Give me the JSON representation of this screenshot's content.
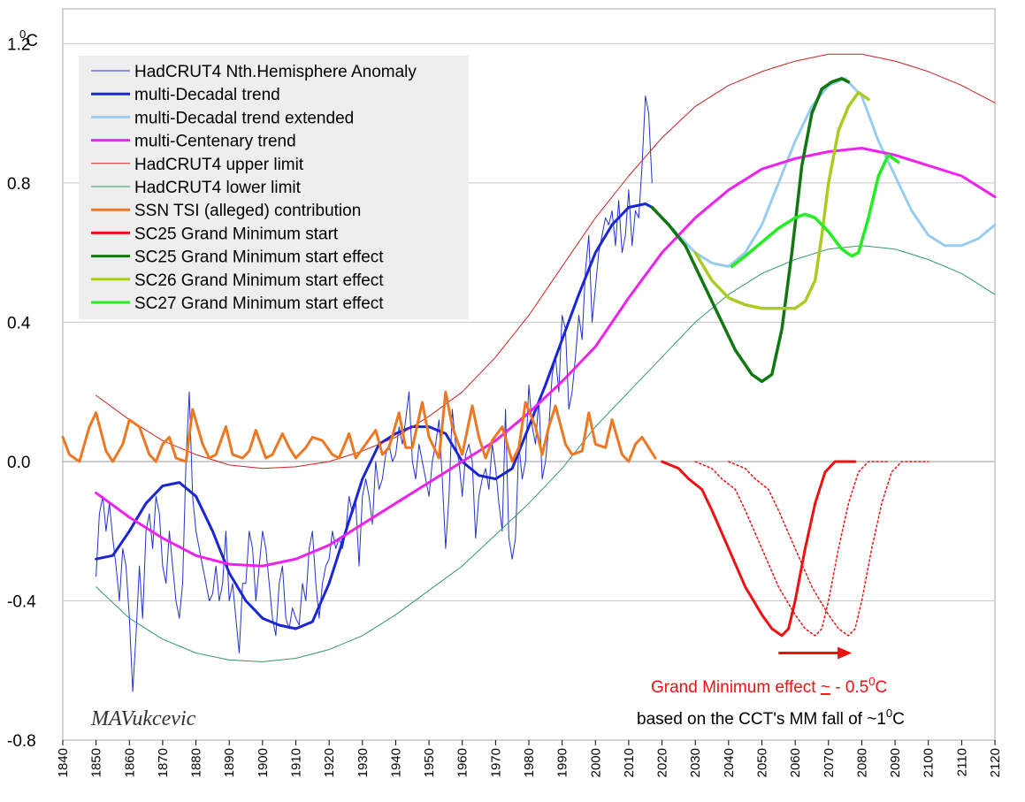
{
  "chart_data": {
    "type": "line",
    "xlim": [
      1840,
      2120
    ],
    "ylim": [
      -0.8,
      1.3
    ],
    "grid": true,
    "legend_position": "top-left",
    "y_unit": {
      "sup": "0",
      "unit": "C"
    },
    "y_ticks": [
      {
        "value": 1.2,
        "label": "1.2"
      },
      {
        "value": 0.8,
        "label": "0.8"
      },
      {
        "value": 0.4,
        "label": "0.4"
      },
      {
        "value": 0.0,
        "label": "0.0"
      },
      {
        "value": -0.4,
        "label": "-0.4"
      },
      {
        "value": -0.8,
        "label": "-0.8"
      }
    ],
    "x_ticks": [
      "1840",
      "1850",
      "1860",
      "1870",
      "1880",
      "1890",
      "1900",
      "1910",
      "1920",
      "1930",
      "1940",
      "1950",
      "1960",
      "1970",
      "1980",
      "1990",
      "2000",
      "2010",
      "2020",
      "2030",
      "2040",
      "2050",
      "2060",
      "2070",
      "2080",
      "2090",
      "2100",
      "2110",
      "2120"
    ],
    "series": [
      {
        "key": "anomaly",
        "name": "HadCRUT4 Nth.Hemisphere Anomaly",
        "color": "#2233cc",
        "width": 1,
        "x": [
          1850,
          1851,
          1852,
          1853,
          1854,
          1855,
          1856,
          1857,
          1858,
          1859,
          1860,
          1861,
          1862,
          1863,
          1864,
          1865,
          1866,
          1867,
          1868,
          1869,
          1870,
          1871,
          1872,
          1873,
          1874,
          1875,
          1876,
          1877,
          1878,
          1879,
          1880,
          1881,
          1882,
          1883,
          1884,
          1885,
          1886,
          1887,
          1888,
          1889,
          1890,
          1891,
          1892,
          1893,
          1894,
          1895,
          1896,
          1897,
          1898,
          1899,
          1900,
          1901,
          1902,
          1903,
          1904,
          1905,
          1906,
          1907,
          1908,
          1909,
          1910,
          1911,
          1912,
          1913,
          1914,
          1915,
          1916,
          1917,
          1918,
          1919,
          1920,
          1921,
          1922,
          1923,
          1924,
          1925,
          1926,
          1927,
          1928,
          1929,
          1930,
          1931,
          1932,
          1933,
          1934,
          1935,
          1936,
          1937,
          1938,
          1939,
          1940,
          1941,
          1942,
          1943,
          1944,
          1945,
          1946,
          1947,
          1948,
          1949,
          1950,
          1951,
          1952,
          1953,
          1954,
          1955,
          1956,
          1957,
          1958,
          1959,
          1960,
          1961,
          1962,
          1963,
          1964,
          1965,
          1966,
          1967,
          1968,
          1969,
          1970,
          1971,
          1972,
          1973,
          1974,
          1975,
          1976,
          1977,
          1978,
          1979,
          1980,
          1981,
          1982,
          1983,
          1984,
          1985,
          1986,
          1987,
          1988,
          1989,
          1990,
          1991,
          1992,
          1993,
          1994,
          1995,
          1996,
          1997,
          1998,
          1999,
          2000,
          2001,
          2002,
          2003,
          2004,
          2005,
          2006,
          2007,
          2008,
          2009,
          2010,
          2011,
          2012,
          2013,
          2014,
          2015,
          2016,
          2017
        ],
        "y": [
          -0.33,
          -0.15,
          -0.1,
          -0.2,
          -0.12,
          -0.22,
          -0.3,
          -0.4,
          -0.25,
          -0.3,
          -0.45,
          -0.66,
          -0.5,
          -0.3,
          -0.45,
          -0.2,
          -0.15,
          -0.25,
          -0.1,
          -0.15,
          -0.3,
          -0.35,
          -0.2,
          -0.3,
          -0.4,
          -0.45,
          -0.35,
          0.0,
          0.2,
          -0.1,
          -0.2,
          -0.25,
          -0.3,
          -0.35,
          -0.4,
          -0.38,
          -0.3,
          -0.4,
          -0.35,
          -0.2,
          -0.4,
          -0.35,
          -0.45,
          -0.55,
          -0.35,
          -0.35,
          -0.2,
          -0.25,
          -0.4,
          -0.3,
          -0.2,
          -0.25,
          -0.35,
          -0.45,
          -0.5,
          -0.35,
          -0.3,
          -0.45,
          -0.48,
          -0.42,
          -0.45,
          -0.47,
          -0.35,
          -0.4,
          -0.25,
          -0.2,
          -0.35,
          -0.45,
          -0.35,
          -0.3,
          -0.28,
          -0.2,
          -0.25,
          -0.22,
          -0.25,
          -0.2,
          -0.1,
          -0.15,
          -0.12,
          -0.3,
          -0.1,
          -0.05,
          -0.1,
          -0.18,
          0.0,
          -0.08,
          -0.05,
          0.02,
          0.05,
          0.0,
          0.02,
          0.1,
          0.05,
          0.12,
          0.2,
          0.0,
          -0.05,
          0.05,
          0.0,
          -0.05,
          -0.1,
          0.0,
          0.05,
          0.12,
          -0.05,
          -0.25,
          -0.1,
          0.15,
          0.05,
          0.0,
          -0.1,
          0.02,
          0.05,
          0.0,
          -0.22,
          -0.1,
          -0.05,
          -0.02,
          -0.08,
          0.05,
          -0.02,
          -0.12,
          -0.2,
          0.15,
          -0.22,
          -0.28,
          -0.22,
          0.05,
          -0.05,
          0.0,
          0.22,
          0.1,
          0.05,
          0.18,
          -0.05,
          0.0,
          0.1,
          0.25,
          0.3,
          0.2,
          0.42,
          0.38,
          0.15,
          0.2,
          0.3,
          0.42,
          0.35,
          0.55,
          0.65,
          0.4,
          0.5,
          0.6,
          0.65,
          0.7,
          0.68,
          0.72,
          0.62,
          0.75,
          0.6,
          0.65,
          0.78,
          0.62,
          0.72,
          0.7,
          0.85,
          1.05,
          1.0,
          0.8
        ]
      },
      {
        "key": "decadal",
        "name": "multi-Decadal trend",
        "color": "#1a26d6",
        "width": 3,
        "dash": "",
        "x": [
          1850,
          1855,
          1860,
          1865,
          1870,
          1875,
          1880,
          1885,
          1890,
          1895,
          1900,
          1905,
          1910,
          1915,
          1920,
          1925,
          1930,
          1935,
          1940,
          1945,
          1950,
          1955,
          1960,
          1965,
          1970,
          1975,
          1980,
          1985,
          1990,
          1995,
          2000,
          2005,
          2010,
          2015,
          2017
        ],
        "y": [
          -0.28,
          -0.27,
          -0.2,
          -0.12,
          -0.07,
          -0.06,
          -0.1,
          -0.2,
          -0.32,
          -0.4,
          -0.45,
          -0.47,
          -0.48,
          -0.46,
          -0.35,
          -0.2,
          -0.05,
          0.05,
          0.08,
          0.1,
          0.1,
          0.08,
          0.0,
          -0.04,
          -0.05,
          -0.02,
          0.1,
          0.22,
          0.35,
          0.48,
          0.6,
          0.68,
          0.73,
          0.74,
          0.73
        ]
      },
      {
        "key": "decadal_ext",
        "name": "multi-Decadal trend extended",
        "color": "#99ccee",
        "width": 3,
        "dash": "",
        "x": [
          2017,
          2020,
          2025,
          2030,
          2035,
          2040,
          2045,
          2050,
          2055,
          2060,
          2065,
          2070,
          2075,
          2080,
          2085,
          2090,
          2095,
          2100,
          2105,
          2110,
          2115,
          2120
        ],
        "y": [
          0.73,
          0.7,
          0.65,
          0.6,
          0.57,
          0.56,
          0.6,
          0.68,
          0.8,
          0.92,
          1.02,
          1.08,
          1.1,
          1.05,
          0.92,
          0.82,
          0.72,
          0.65,
          0.62,
          0.62,
          0.64,
          0.68
        ]
      },
      {
        "key": "centenary",
        "name": "multi-Centenary trend",
        "color": "#ee22ee",
        "width": 3,
        "dash": "",
        "x": [
          1850,
          1860,
          1870,
          1880,
          1890,
          1900,
          1910,
          1920,
          1930,
          1940,
          1950,
          1960,
          1970,
          1980,
          1990,
          2000,
          2010,
          2020,
          2030,
          2040,
          2050,
          2060,
          2070,
          2080,
          2090,
          2100,
          2110,
          2120
        ],
        "y": [
          -0.09,
          -0.16,
          -0.22,
          -0.27,
          -0.295,
          -0.3,
          -0.28,
          -0.24,
          -0.18,
          -0.12,
          -0.06,
          0.0,
          0.06,
          0.14,
          0.23,
          0.33,
          0.47,
          0.6,
          0.7,
          0.78,
          0.84,
          0.87,
          0.89,
          0.9,
          0.88,
          0.85,
          0.82,
          0.76
        ]
      },
      {
        "key": "upper",
        "name": "HadCRUT4 upper limit",
        "color": "#cc2222",
        "width": 1,
        "dash": "",
        "x": [
          1850,
          1860,
          1870,
          1880,
          1890,
          1900,
          1910,
          1920,
          1930,
          1940,
          1950,
          1960,
          1970,
          1980,
          1990,
          2000,
          2010,
          2020,
          2030,
          2040,
          2050,
          2060,
          2070,
          2080,
          2090,
          2100,
          2110,
          2120
        ],
        "y": [
          0.19,
          0.12,
          0.06,
          0.02,
          -0.01,
          -0.02,
          -0.015,
          0.0,
          0.03,
          0.07,
          0.13,
          0.2,
          0.3,
          0.42,
          0.56,
          0.7,
          0.82,
          0.93,
          1.02,
          1.08,
          1.12,
          1.15,
          1.17,
          1.17,
          1.15,
          1.12,
          1.08,
          1.03
        ]
      },
      {
        "key": "lower",
        "name": "HadCRUT4 lower limit",
        "color": "#339966",
        "width": 1,
        "dash": "",
        "x": [
          1850,
          1860,
          1870,
          1880,
          1890,
          1900,
          1910,
          1920,
          1930,
          1940,
          1950,
          1960,
          1970,
          1980,
          1990,
          2000,
          2010,
          2020,
          2030,
          2040,
          2050,
          2060,
          2070,
          2080,
          2090,
          2100,
          2110,
          2120
        ],
        "y": [
          -0.36,
          -0.45,
          -0.51,
          -0.55,
          -0.57,
          -0.575,
          -0.565,
          -0.54,
          -0.5,
          -0.44,
          -0.37,
          -0.3,
          -0.21,
          -0.12,
          -0.02,
          0.1,
          0.2,
          0.3,
          0.4,
          0.48,
          0.54,
          0.58,
          0.61,
          0.62,
          0.61,
          0.58,
          0.54,
          0.48
        ]
      },
      {
        "key": "tsi",
        "name": "SSN TSI (alleged) contribution",
        "color": "#ee7722",
        "width": 3,
        "dash": "",
        "x": [
          1840,
          1842,
          1845,
          1848,
          1850,
          1853,
          1855,
          1858,
          1860,
          1863,
          1866,
          1868,
          1870,
          1872,
          1874,
          1877,
          1879,
          1882,
          1884,
          1886,
          1889,
          1891,
          1894,
          1896,
          1898,
          1901,
          1903,
          1906,
          1908,
          1910,
          1913,
          1915,
          1918,
          1921,
          1923,
          1926,
          1928,
          1931,
          1934,
          1936,
          1938,
          1941,
          1943,
          1945,
          1948,
          1950,
          1953,
          1955,
          1957,
          1960,
          1963,
          1965,
          1967,
          1969,
          1972,
          1975,
          1977,
          1979,
          1982,
          1984,
          1986,
          1988,
          1991,
          1993,
          1996,
          1998,
          2000,
          2003,
          2005,
          2008,
          2010,
          2012,
          2014,
          2016,
          2018
        ],
        "y": [
          0.07,
          0.02,
          0.0,
          0.1,
          0.14,
          0.03,
          0.0,
          0.05,
          0.12,
          0.1,
          0.02,
          0.0,
          0.05,
          0.07,
          0.01,
          0.0,
          0.15,
          0.05,
          0.01,
          0.02,
          0.1,
          0.02,
          0.01,
          0.03,
          0.09,
          0.01,
          0.02,
          0.08,
          0.04,
          0.01,
          0.04,
          0.07,
          0.06,
          0.02,
          0.01,
          0.08,
          0.01,
          0.05,
          0.09,
          0.02,
          0.04,
          0.14,
          0.04,
          0.04,
          0.17,
          0.07,
          0.01,
          0.2,
          0.1,
          0.02,
          0.16,
          0.07,
          0.01,
          0.06,
          0.1,
          0.0,
          0.04,
          0.17,
          0.1,
          0.02,
          0.1,
          0.16,
          0.05,
          0.02,
          0.03,
          0.14,
          0.05,
          0.04,
          0.12,
          0.02,
          0.0,
          0.05,
          0.07,
          0.04,
          0.01
        ]
      },
      {
        "key": "gm25",
        "name": "SC25 Grand Minimum start",
        "color": "#ee1111",
        "width": 3,
        "dash": "",
        "x": [
          2020,
          2025,
          2028,
          2032,
          2035,
          2040,
          2045,
          2050,
          2053,
          2056,
          2058,
          2060,
          2063,
          2066,
          2069,
          2072,
          2075,
          2078
        ],
        "y": [
          0.0,
          -0.02,
          -0.05,
          -0.08,
          -0.14,
          -0.25,
          -0.36,
          -0.44,
          -0.48,
          -0.5,
          -0.48,
          -0.4,
          -0.25,
          -0.12,
          -0.03,
          0.0,
          0.0,
          0.0
        ]
      },
      {
        "key": "gm26_dot",
        "name": "",
        "color": "#ee1111",
        "width": 1.5,
        "dash": "2,3",
        "x": [
          2030,
          2035,
          2038,
          2042,
          2045,
          2050,
          2055,
          2060,
          2063,
          2066,
          2068,
          2070,
          2073,
          2076,
          2079,
          2082,
          2085,
          2088
        ],
        "y": [
          0.0,
          -0.02,
          -0.05,
          -0.08,
          -0.14,
          -0.25,
          -0.36,
          -0.44,
          -0.48,
          -0.5,
          -0.48,
          -0.4,
          -0.25,
          -0.12,
          -0.03,
          0.0,
          0.0,
          0.0
        ]
      },
      {
        "key": "gm27_dot",
        "name": "",
        "color": "#ee1111",
        "width": 1.5,
        "dash": "2,3",
        "x": [
          2040,
          2045,
          2048,
          2052,
          2055,
          2060,
          2065,
          2070,
          2073,
          2076,
          2078,
          2080,
          2083,
          2086,
          2089,
          2092,
          2095,
          2100
        ],
        "y": [
          0.0,
          -0.02,
          -0.05,
          -0.08,
          -0.14,
          -0.25,
          -0.36,
          -0.44,
          -0.48,
          -0.5,
          -0.48,
          -0.4,
          -0.25,
          -0.12,
          -0.03,
          0.0,
          0.0,
          0.0
        ]
      },
      {
        "key": "eff25",
        "name": "SC25 Grand Minimum start effect",
        "color": "#117711",
        "width": 3.5,
        "dash": "",
        "x": [
          2017,
          2022,
          2027,
          2032,
          2037,
          2042,
          2047,
          2050,
          2053,
          2056,
          2059,
          2062,
          2065,
          2068,
          2071,
          2074,
          2076
        ],
        "y": [
          0.73,
          0.68,
          0.62,
          0.52,
          0.42,
          0.32,
          0.25,
          0.23,
          0.25,
          0.38,
          0.6,
          0.85,
          1.0,
          1.07,
          1.09,
          1.1,
          1.09
        ]
      },
      {
        "key": "eff26",
        "name": "SC26 Grand Minimum start effect",
        "color": "#aacc22",
        "width": 3.5,
        "dash": "",
        "x": [
          2030,
          2035,
          2040,
          2045,
          2050,
          2055,
          2060,
          2063,
          2066,
          2068,
          2070,
          2073,
          2076,
          2079,
          2082
        ],
        "y": [
          0.6,
          0.52,
          0.47,
          0.45,
          0.44,
          0.44,
          0.44,
          0.46,
          0.52,
          0.65,
          0.8,
          0.95,
          1.02,
          1.06,
          1.04
        ]
      },
      {
        "key": "eff27",
        "name": "SC27 Grand Minimum start effect",
        "color": "#22ee22",
        "width": 3.5,
        "dash": "",
        "x": [
          2041,
          2045,
          2050,
          2055,
          2060,
          2063,
          2066,
          2070,
          2074,
          2077,
          2079,
          2082,
          2085,
          2088,
          2091
        ],
        "y": [
          0.56,
          0.59,
          0.63,
          0.67,
          0.7,
          0.71,
          0.7,
          0.66,
          0.61,
          0.59,
          0.6,
          0.7,
          0.82,
          0.88,
          0.86
        ]
      }
    ],
    "annotations": {
      "signature": "MAVukcevic",
      "gm_effect": {
        "prefix": "Grand Minimum effect ",
        "approx": "~",
        "value": " - 0.5",
        "sup": "0",
        "unit": "C",
        "color": "#ee1111"
      },
      "basis": {
        "text": "based on the CCT's MM fall of ~1",
        "sup": "0",
        "unit": "C"
      },
      "arrow_x": [
        2055,
        2077
      ],
      "arrow_y": -0.55,
      "arrow_color": "#ee1111"
    }
  }
}
